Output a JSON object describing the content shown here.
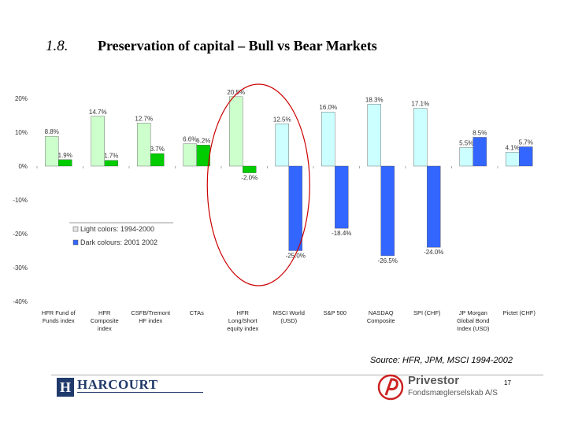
{
  "title": {
    "number": "1.8.",
    "text": "Preservation of capital – Bull vs Bear Markets"
  },
  "chart_data": {
    "type": "bar",
    "ylim": [
      -40,
      20
    ],
    "yticks": [
      20,
      10,
      0,
      -10,
      -20,
      -30,
      -40
    ],
    "ytick_labels": [
      "20%",
      "10%",
      "0%",
      "-10%",
      "-20%",
      "-30%",
      "-40%"
    ],
    "categories": [
      [
        "HFR Fund of",
        "Funds index"
      ],
      [
        "HFR",
        "Composite",
        "index"
      ],
      [
        "CSFB/Tremont",
        "HF index"
      ],
      [
        "CTAs"
      ],
      [
        "HFR",
        "Long/Short",
        "equity index"
      ],
      [
        "MSCI World",
        "(USD)"
      ],
      [
        "S&P 500"
      ],
      [
        "NASDAQ",
        "Composite"
      ],
      [
        "SPI (CHF)"
      ],
      [
        "JP Morgan",
        "Global Bond",
        "Index (USD)"
      ],
      [
        "Pictet (CHF)"
      ]
    ],
    "series": [
      {
        "name": "Light colors: 1994-2000",
        "values": [
          8.8,
          14.7,
          12.7,
          6.6,
          20.5,
          12.5,
          16.0,
          18.3,
          17.1,
          5.5,
          4.1
        ],
        "labels": [
          "8.8%",
          "14.7%",
          "12.7%",
          "6.6%",
          "20.5%",
          "12.5%",
          "16.0%",
          "18.3%",
          "17.1%",
          "5.5%",
          "4.1%"
        ]
      },
      {
        "name": "Dark colours: 2001 2002",
        "values": [
          1.9,
          1.7,
          3.7,
          6.2,
          -2.0,
          -25.0,
          -18.4,
          -26.5,
          -24.0,
          8.5,
          5.7
        ],
        "labels": [
          "1.9%",
          "1.7%",
          "3.7%",
          "6.2%",
          "-2.0%",
          "-25.0%",
          "-18.4%",
          "-26.5%",
          "-24.0%",
          "8.5%",
          "5.7%"
        ]
      }
    ],
    "colors": {
      "light_green": "#ccffcc",
      "dark_green": "#00cc00",
      "light_blue": "#ccffff",
      "dark_blue": "#3366ff",
      "highlight": "#cc0000"
    },
    "green_categories": 5,
    "highlighted_category": 4
  },
  "source": "Source: HFR, JPM, MSCI 1994-2002",
  "footer": {
    "harcourt": "HARCOURT",
    "harcourt_mark": "H",
    "privestor": "Privestor",
    "privestor_sub": "Fondsmæglerselskab A/S",
    "page": "17"
  }
}
